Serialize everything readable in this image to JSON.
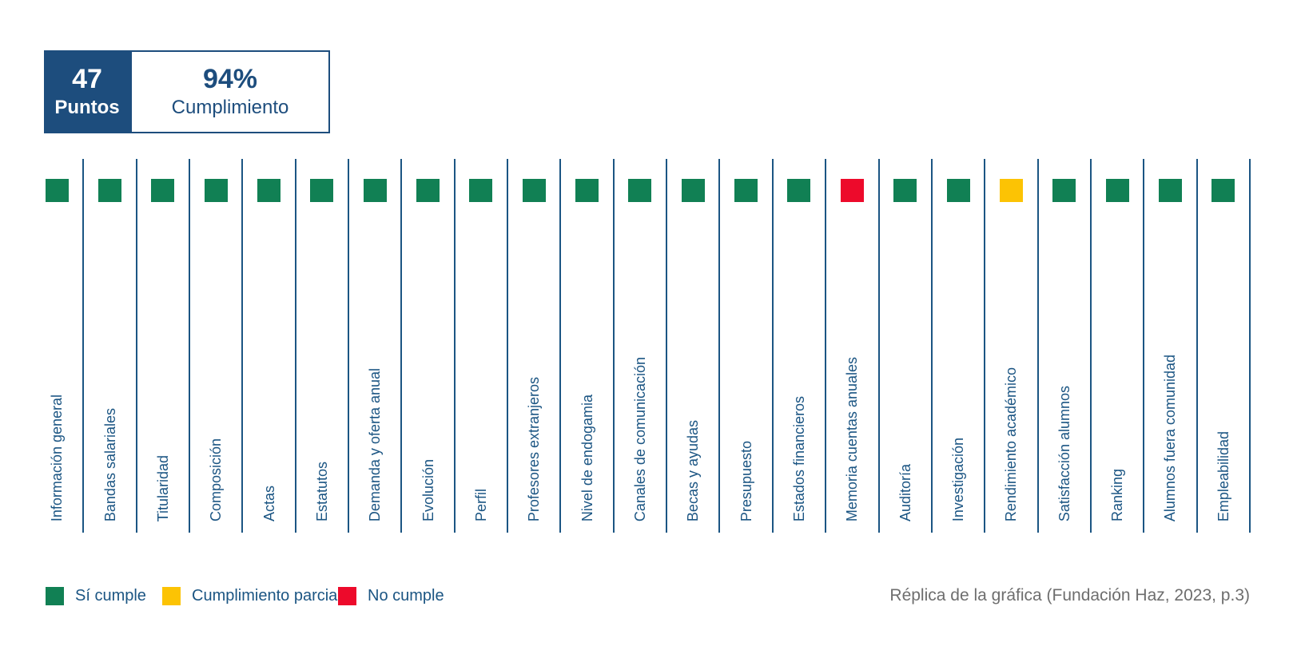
{
  "colors": {
    "dark_blue": "#1d4d7d",
    "line_blue": "#1b5583",
    "green": "#118054",
    "yellow": "#fcc304",
    "red": "#ed0a2b",
    "footer_gray": "#6e6e6e"
  },
  "scorecard": {
    "points_value": "47",
    "points_label": "Puntos",
    "percent_value": "94%",
    "percent_label": "Cumplimiento"
  },
  "legend": {
    "items": [
      {
        "label": "Sí cumple",
        "status": "si",
        "color": "#118054"
      },
      {
        "label": "Cumplimiento parcial",
        "status": "parcial",
        "color": "#fcc304"
      },
      {
        "label": "No cumple",
        "status": "no",
        "color": "#ed0a2b"
      }
    ]
  },
  "footer": {
    "caption": "Réplica de la gráfica (Fundación Haz, 2023, p.3)"
  },
  "chart_data": {
    "type": "heatmap",
    "title": "",
    "categories": [
      "Información general",
      "Bandas salariales",
      "Titularidad",
      "Composición",
      "Actas",
      "Estatutos",
      "Demanda y oferta anual",
      "Evolución",
      "Perfil",
      "Profesores extranjeros",
      "Nivel de endogamia",
      "Canales de comunicación",
      "Becas y ayudas",
      "Presupuesto",
      "Estados financieros",
      "Memoria cuentas anuales",
      "Auditoría",
      "Investigación",
      "Rendimiento académico",
      "Satisfacción alumnos",
      "Ranking",
      "Alumnos fuera comunidad",
      "Empleabilidad"
    ],
    "statuses": [
      "si",
      "si",
      "si",
      "si",
      "si",
      "si",
      "si",
      "si",
      "si",
      "si",
      "si",
      "si",
      "si",
      "si",
      "si",
      "no",
      "si",
      "si",
      "parcial",
      "si",
      "si",
      "si",
      "si"
    ],
    "status_colors": {
      "si": "#118054",
      "parcial": "#fcc304",
      "no": "#ed0a2b"
    },
    "status_legend": {
      "si": "Sí cumple",
      "parcial": "Cumplimiento parcial",
      "no": "No cumple"
    },
    "counts": {
      "si": 21,
      "parcial": 1,
      "no": 1
    },
    "summary": {
      "points": "47",
      "points_label": "Puntos",
      "compliance_percent": "94%",
      "compliance_label": "Cumplimiento"
    },
    "layout": {
      "orientation": "single-row-status-strip",
      "label_rotation_deg": 90,
      "separators": "vertical-lines-between-categories",
      "legend_position": "bottom-left"
    }
  }
}
